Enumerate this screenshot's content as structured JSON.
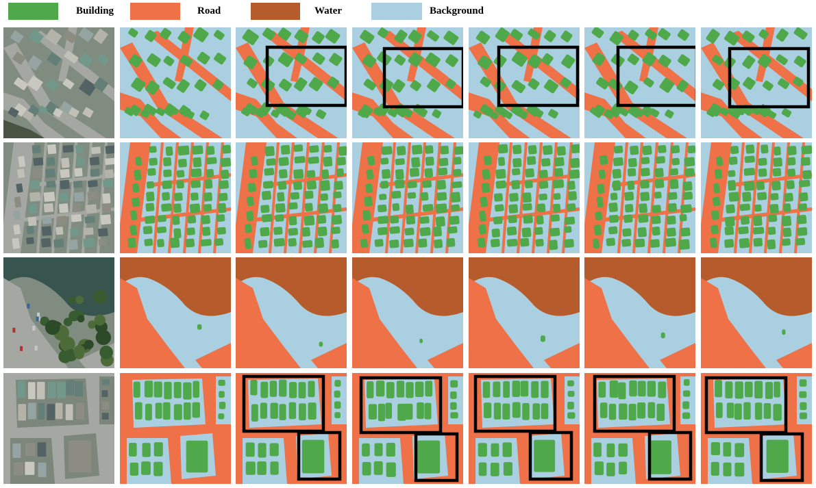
{
  "legend": [
    {
      "label": "Building",
      "color": "#4fa84a"
    },
    {
      "label": "Road",
      "color": "#ef7147"
    },
    {
      "label": "Water",
      "color": "#b55b2c"
    },
    {
      "label": "Background",
      "color": "#a9cfe0"
    }
  ],
  "colors": {
    "building": "#4fa84a",
    "road": "#ef7147",
    "water": "#b55b2c",
    "background": "#a9cfe0",
    "highlight_box": "#000000"
  },
  "grid": {
    "rows": 4,
    "columns": 7,
    "column_types": [
      "aerial-photo",
      "segmentation-map",
      "segmentation-map",
      "segmentation-map",
      "segmentation-map",
      "segmentation-map",
      "segmentation-map"
    ],
    "row_scenes": [
      "dense-urban-diagonal-roads",
      "dense-urban-grid-with-highway",
      "lake-with-road",
      "urban-blocks-with-plazas"
    ],
    "highlighted_rows": [
      0,
      3
    ]
  }
}
